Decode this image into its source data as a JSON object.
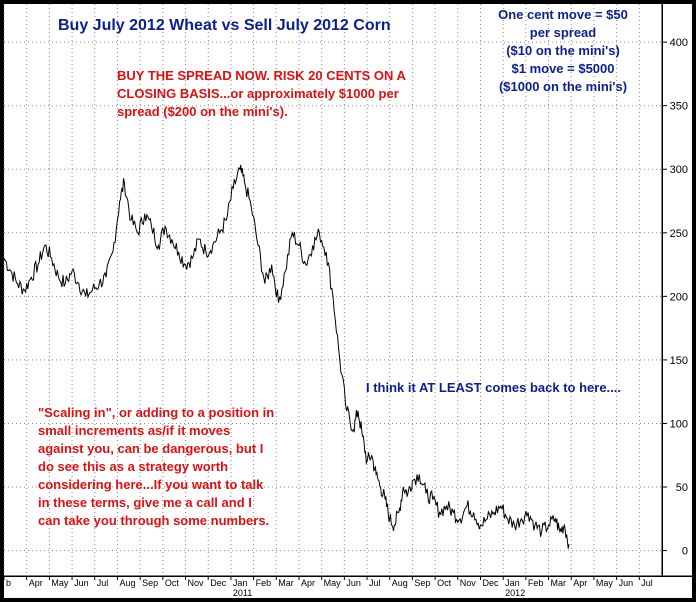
{
  "chart_data": {
    "type": "line",
    "title": "Buy July 2012 Wheat vs Sell July 2012 Corn",
    "y_axis": {
      "ticks": [
        0,
        50,
        100,
        150,
        200,
        250,
        300,
        350,
        400
      ],
      "range": [
        -20,
        430
      ],
      "position": "right",
      "grid": true
    },
    "x_axis": {
      "month_labels": [
        "b",
        "Apr",
        "May",
        "Jun",
        "Jul",
        "Aug",
        "Sep",
        "Oct",
        "Nov",
        "Dec",
        "Jan",
        "Feb",
        "Mar",
        "Apr",
        "May",
        "Jun",
        "Jul",
        "Aug",
        "Sep",
        "Oct",
        "Nov",
        "Dec",
        "Jan",
        "Feb",
        "Mar",
        "Apr",
        "May",
        "Jun",
        "Jul"
      ],
      "year_labels": [
        {
          "label": "2011",
          "month_index": 10
        },
        {
          "label": "2012",
          "month_index": 22
        }
      ],
      "range_months": [
        0,
        29
      ],
      "grid": true
    },
    "series": [
      {
        "color": "#000000",
        "x": [
          0.0,
          0.3,
          0.6,
          0.9,
          1.2,
          1.5,
          1.8,
          2.1,
          2.4,
          2.7,
          3.0,
          3.3,
          3.6,
          3.9,
          4.2,
          4.5,
          4.8,
          5.1,
          5.3,
          5.6,
          5.9,
          6.2,
          6.5,
          6.8,
          7.1,
          7.4,
          7.7,
          8.0,
          8.3,
          8.6,
          8.9,
          9.2,
          9.5,
          9.8,
          10.1,
          10.4,
          10.6,
          10.9,
          11.2,
          11.5,
          11.8,
          12.1,
          12.4,
          12.7,
          13.0,
          13.3,
          13.6,
          13.9,
          14.2,
          14.5,
          14.8,
          15.1,
          15.4,
          15.6,
          15.8,
          16.0,
          16.2,
          16.4,
          16.6,
          16.8,
          17.0,
          17.2,
          17.4,
          17.6,
          17.8,
          18.0,
          18.3,
          18.6,
          18.9,
          19.2,
          19.5,
          19.8,
          20.1,
          20.4,
          20.7,
          21.0,
          21.3,
          21.6,
          21.9,
          22.2,
          22.5,
          22.8,
          23.1,
          23.4,
          23.7,
          24.0,
          24.3,
          24.5,
          24.7,
          24.9
        ],
        "y": [
          230,
          220,
          210,
          205,
          215,
          225,
          240,
          230,
          215,
          210,
          220,
          210,
          200,
          205,
          210,
          215,
          235,
          275,
          290,
          260,
          250,
          265,
          255,
          240,
          255,
          245,
          235,
          225,
          230,
          245,
          235,
          240,
          250,
          260,
          285,
          300,
          290,
          270,
          240,
          210,
          225,
          195,
          220,
          250,
          240,
          225,
          240,
          250,
          235,
          200,
          150,
          110,
          95,
          110,
          90,
          70,
          75,
          60,
          50,
          40,
          25,
          20,
          30,
          50,
          45,
          55,
          60,
          45,
          40,
          30,
          35,
          30,
          25,
          35,
          30,
          20,
          25,
          30,
          35,
          25,
          20,
          25,
          30,
          20,
          15,
          20,
          25,
          15,
          20,
          5
        ]
      }
    ],
    "annotations": {
      "contract_note": "One cent move = $50\nper spread\n($10 on the mini's)\n$1 move = $5000\n($1000 on the mini's)",
      "buy_note": "BUY THE SPREAD NOW. RISK 20 CENTS ON A\nCLOSING BASIS...or approximately $1000 per\nspread ($200 on the mini's).",
      "target_note": "I think it AT LEAST comes back to here....",
      "scaling_note": "\"Scaling in\", or adding to a position in\nsmall increments as/if it moves\nagainst you, can be dangerous, but I\ndo see this as a strategy worth\nconsidering here...If you want to talk\nin these terms, give me a call and I\ncan take you through some numbers."
    }
  },
  "colors": {
    "frame": "#000000",
    "plot_bg": "#ffffff",
    "grid": "#8a8a8a",
    "blue_text": "#0b1f8f",
    "red_text": "#e01010"
  }
}
